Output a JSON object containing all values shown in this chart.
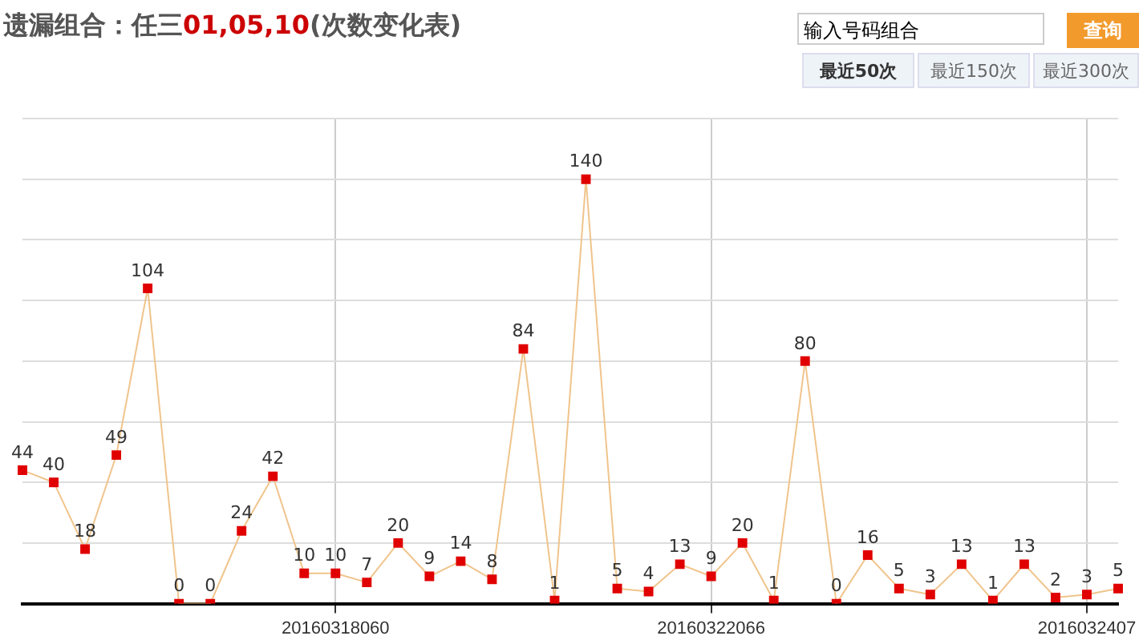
{
  "chart_data": {
    "type": "line",
    "title": "遗漏组合：任三01,05,10(次数变化表)",
    "categories": [
      null,
      null,
      null,
      null,
      null,
      null,
      null,
      null,
      null,
      null,
      "20160318060",
      null,
      null,
      null,
      null,
      null,
      null,
      null,
      null,
      null,
      null,
      null,
      "20160322066",
      null,
      null,
      null,
      null,
      null,
      null,
      null,
      null,
      null,
      null,
      null,
      "2016032407",
      null
    ],
    "series": [
      {
        "color": "#e00000",
        "values": [
          44,
          40,
          18,
          49,
          104,
          0,
          0,
          24,
          42,
          10,
          10,
          7,
          20,
          9,
          14,
          8,
          84,
          1,
          140,
          5,
          4,
          13,
          9,
          20,
          1,
          80,
          0,
          16,
          5,
          3,
          13,
          1,
          13,
          2,
          3,
          5
        ]
      }
    ],
    "ylim": [
      0,
      160
    ],
    "tick_labels": "x",
    "grid": true,
    "legend": false,
    "marker": "square",
    "line_style": "solid",
    "data_labels": true,
    "annotations": [
      "输入号码组合",
      "查询",
      "最近50次",
      "最近150次",
      "最近300次"
    ]
  }
}
